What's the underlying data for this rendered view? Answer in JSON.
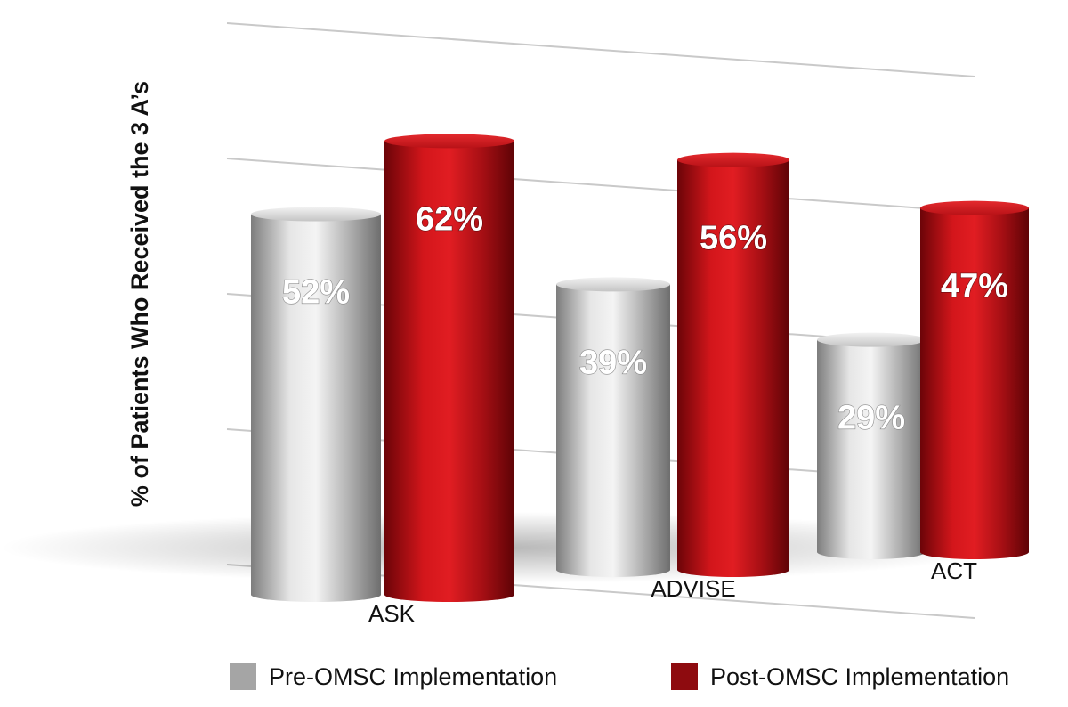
{
  "chart_data": {
    "type": "bar",
    "title": "",
    "xlabel": "",
    "ylabel": "% of Patients Who Received the 3 A’s",
    "categories": [
      "ASK",
      "ADVISE",
      "ACT"
    ],
    "series": [
      {
        "name": "Pre-OMSC Implementation",
        "values": [
          52,
          39,
          29
        ],
        "labels": [
          "52%",
          "39%",
          "29%"
        ],
        "color": "#b9b9b9"
      },
      {
        "name": "Post-OMSC Implementation",
        "values": [
          62,
          56,
          47
        ],
        "labels": [
          "62%",
          "56%",
          "47%"
        ],
        "color": "#b31217"
      }
    ],
    "ylim": [
      0,
      70
    ],
    "grid": true,
    "legend_position": "bottom"
  }
}
